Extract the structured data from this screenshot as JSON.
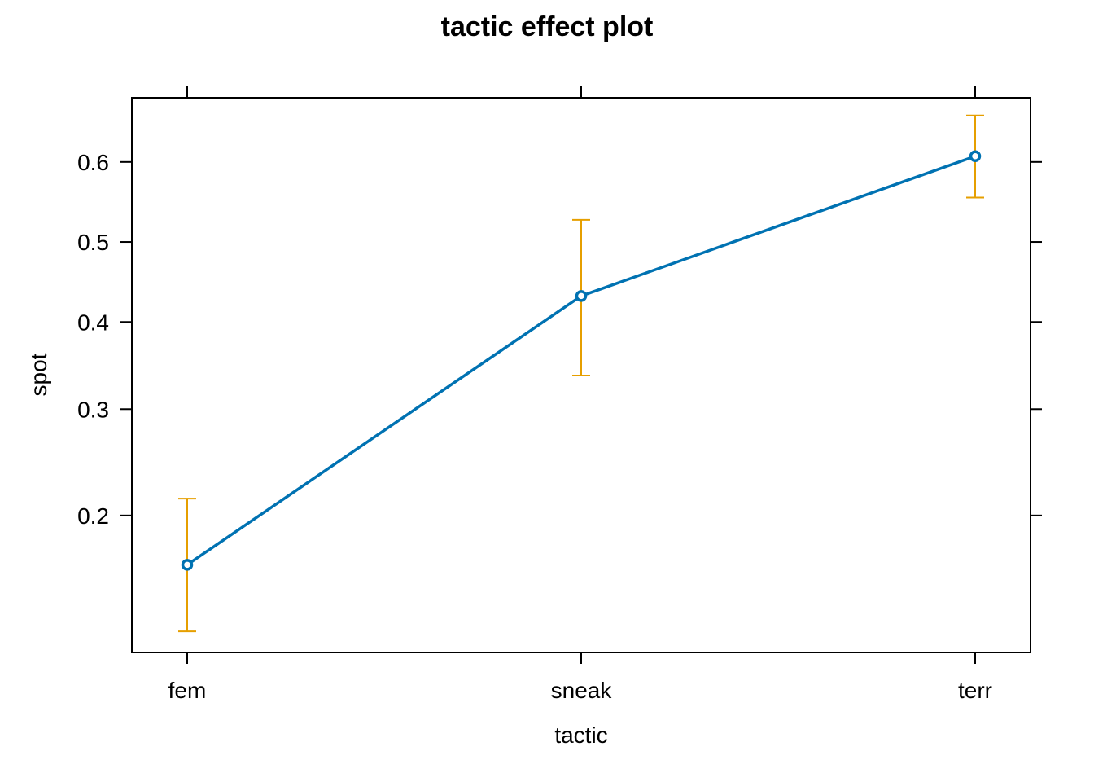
{
  "chart_data": {
    "type": "line",
    "title": "tactic effect plot",
    "xlabel": "tactic",
    "ylabel": "spot",
    "y_scale": "logit",
    "categories": [
      "fem",
      "sneak",
      "terr"
    ],
    "series": [
      {
        "values": [
          0.163,
          0.432,
          0.607
        ],
        "lower": [
          0.122,
          0.337,
          0.556
        ],
        "upper": [
          0.214,
          0.528,
          0.655
        ]
      }
    ],
    "yticks": [
      "0.2",
      "0.3",
      "0.4",
      "0.5",
      "0.6"
    ],
    "ylim": [
      0.111,
      0.675
    ],
    "grid": false,
    "colors": {
      "line": "#0072b2",
      "ci": "#e69f00",
      "axis": "#000000"
    }
  }
}
